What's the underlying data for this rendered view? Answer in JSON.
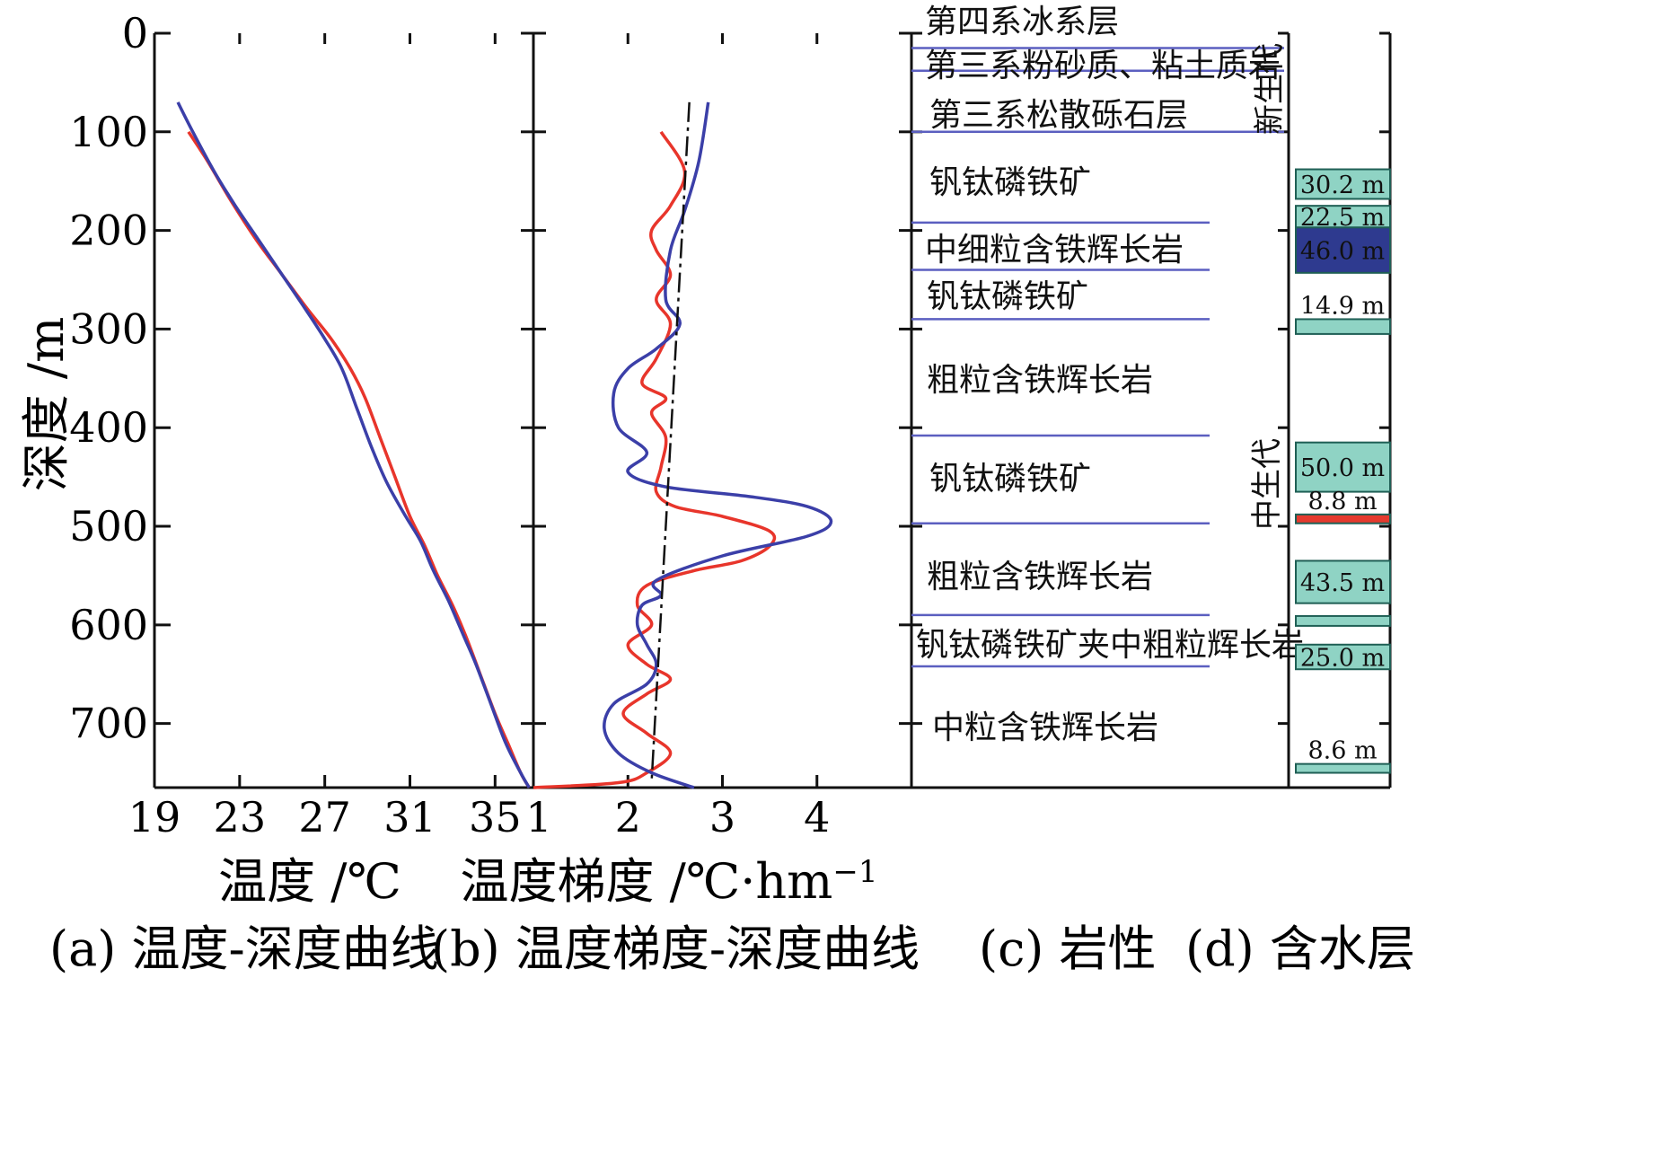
{
  "colors": {
    "red_curve": "#e8352b",
    "blue_curve": "#3b3fa8",
    "boundary": "#5b5fc0",
    "aquifer_fill": "#8fd3c4",
    "aquifer_dark": "#2e3a8f",
    "aquifer_red": "#e53a2e"
  },
  "y_axis": {
    "label": "深度 /m",
    "ticks": [
      "0",
      "100",
      "200",
      "300",
      "400",
      "500",
      "600",
      "700"
    ]
  },
  "panel_a": {
    "xlabel": "温度 /℃",
    "xticks": [
      "19",
      "23",
      "27",
      "31",
      "35"
    ],
    "caption": "(a) 温度-深度曲线"
  },
  "panel_b": {
    "xlabel": "温度梯度 /℃·hm",
    "xlabel_sup": "−1",
    "xticks": [
      "1",
      "2",
      "3",
      "4"
    ],
    "caption": "(b) 温度梯度-深度曲线"
  },
  "panel_c": {
    "caption": "(c) 岩性",
    "layers": [
      {
        "name": "第四系冰系层"
      },
      {
        "name": "第三系粉砂质、粘土质岩"
      },
      {
        "name": "第三系松散砾石层"
      },
      {
        "name": "钒钛磷铁矿"
      },
      {
        "name": "中细粒含铁辉长岩"
      },
      {
        "name": "钒钛磷铁矿"
      },
      {
        "name": "粗粒含铁辉长岩"
      },
      {
        "name": "钒钛磷铁矿"
      },
      {
        "name": "粗粒含铁辉长岩"
      },
      {
        "name": "钒钛磷铁矿夹中粗粒辉长岩"
      },
      {
        "name": "中粒含铁辉长岩"
      }
    ],
    "boundaries_m": [
      15,
      38,
      100,
      192,
      240,
      290,
      408,
      497,
      590,
      642
    ]
  },
  "panel_d": {
    "caption": "(d) 含水层",
    "eras": [
      "新生代",
      "中生代"
    ],
    "aquifers": [
      {
        "label": "30.2 m",
        "top": 138,
        "bottom": 168,
        "style": "light"
      },
      {
        "label": "22.5 m",
        "top": 175,
        "bottom": 197,
        "style": "light"
      },
      {
        "label": "46.0 m",
        "top": 197,
        "bottom": 243,
        "style": "dark"
      },
      {
        "label": "14.9 m",
        "top": 290,
        "bottom": 305,
        "style": "light"
      },
      {
        "label": "50.0 m",
        "top": 415,
        "bottom": 465,
        "style": "light"
      },
      {
        "label": "8.8 m",
        "top": 488,
        "bottom": 497,
        "style": "red"
      },
      {
        "label": "43.5 m",
        "top": 535,
        "bottom": 578,
        "style": "light"
      },
      {
        "label": "",
        "top": 591,
        "bottom": 601,
        "style": "light"
      },
      {
        "label": "25.0 m",
        "top": 620,
        "bottom": 645,
        "style": "light"
      },
      {
        "label": "8.6 m",
        "top": 741,
        "bottom": 750,
        "style": "light"
      }
    ]
  },
  "chart_data": [
    {
      "type": "line",
      "xlabel": "温度 /℃",
      "ylabel": "深度 /m",
      "xlim": [
        19,
        36.8
      ],
      "ylim": [
        0,
        765
      ],
      "y_inverted": true,
      "series": [
        {
          "color": "red",
          "points": [
            [
              20.6,
              100
            ],
            [
              21.5,
              130
            ],
            [
              22.6,
              170
            ],
            [
              23.8,
              210
            ],
            [
              25.0,
              245
            ],
            [
              26.2,
              280
            ],
            [
              27.3,
              310
            ],
            [
              28.2,
              340
            ],
            [
              28.9,
              370
            ],
            [
              29.6,
              410
            ],
            [
              30.3,
              450
            ],
            [
              31.0,
              490
            ],
            [
              31.7,
              520
            ],
            [
              32.3,
              550
            ],
            [
              33.0,
              580
            ],
            [
              33.6,
              610
            ],
            [
              34.3,
              650
            ],
            [
              35.0,
              690
            ],
            [
              35.6,
              720
            ],
            [
              36.2,
              750
            ],
            [
              36.6,
              765
            ]
          ]
        },
        {
          "color": "blue",
          "points": [
            [
              20.1,
              70
            ],
            [
              20.8,
              100
            ],
            [
              21.8,
              140
            ],
            [
              22.8,
              175
            ],
            [
              23.9,
              210
            ],
            [
              25.0,
              245
            ],
            [
              26.1,
              280
            ],
            [
              27.0,
              310
            ],
            [
              27.8,
              340
            ],
            [
              28.5,
              380
            ],
            [
              29.2,
              420
            ],
            [
              29.9,
              455
            ],
            [
              30.8,
              490
            ],
            [
              31.5,
              515
            ],
            [
              32.1,
              545
            ],
            [
              32.8,
              575
            ],
            [
              33.5,
              610
            ],
            [
              34.1,
              640
            ],
            [
              34.8,
              680
            ],
            [
              35.5,
              720
            ],
            [
              36.2,
              750
            ],
            [
              36.6,
              765
            ]
          ]
        }
      ]
    },
    {
      "type": "line",
      "xlabel": "温度梯度 /℃·hm−1",
      "ylabel": "深度 /m",
      "xlim": [
        1,
        5
      ],
      "ylim": [
        0,
        765
      ],
      "y_inverted": true,
      "series": [
        {
          "color": "red",
          "points": [
            [
              2.35,
              100
            ],
            [
              2.6,
              140
            ],
            [
              2.45,
              175
            ],
            [
              2.25,
              200
            ],
            [
              2.3,
              220
            ],
            [
              2.45,
              245
            ],
            [
              2.3,
              270
            ],
            [
              2.45,
              295
            ],
            [
              2.3,
              330
            ],
            [
              2.15,
              355
            ],
            [
              2.4,
              370
            ],
            [
              2.25,
              385
            ],
            [
              2.4,
              410
            ],
            [
              2.35,
              440
            ],
            [
              2.3,
              465
            ],
            [
              2.5,
              480
            ],
            [
              3.0,
              490
            ],
            [
              3.5,
              505
            ],
            [
              3.5,
              520
            ],
            [
              3.2,
              535
            ],
            [
              2.7,
              545
            ],
            [
              2.2,
              560
            ],
            [
              2.1,
              580
            ],
            [
              2.25,
              600
            ],
            [
              2.0,
              620
            ],
            [
              2.2,
              640
            ],
            [
              2.45,
              655
            ],
            [
              2.2,
              670
            ],
            [
              1.95,
              690
            ],
            [
              2.2,
              710
            ],
            [
              2.45,
              730
            ],
            [
              2.2,
              750
            ],
            [
              1.9,
              760
            ],
            [
              1.0,
              765
            ]
          ]
        },
        {
          "color": "blue",
          "points": [
            [
              2.85,
              70
            ],
            [
              2.75,
              130
            ],
            [
              2.6,
              180
            ],
            [
              2.45,
              220
            ],
            [
              2.4,
              270
            ],
            [
              2.55,
              295
            ],
            [
              2.3,
              320
            ],
            [
              2.0,
              340
            ],
            [
              1.85,
              365
            ],
            [
              1.9,
              400
            ],
            [
              2.2,
              425
            ],
            [
              2.0,
              445
            ],
            [
              2.4,
              460
            ],
            [
              3.3,
              470
            ],
            [
              3.9,
              480
            ],
            [
              4.15,
              495
            ],
            [
              3.9,
              510
            ],
            [
              3.0,
              530
            ],
            [
              2.3,
              555
            ],
            [
              2.35,
              570
            ],
            [
              2.15,
              580
            ],
            [
              2.1,
              600
            ],
            [
              2.2,
              620
            ],
            [
              2.3,
              640
            ],
            [
              2.2,
              660
            ],
            [
              1.85,
              680
            ],
            [
              1.75,
              705
            ],
            [
              1.9,
              730
            ],
            [
              2.25,
              750
            ],
            [
              2.7,
              765
            ]
          ]
        },
        {
          "color": "black",
          "style": "dashed",
          "points": [
            [
              2.65,
              70
            ],
            [
              2.25,
              760
            ]
          ]
        }
      ]
    }
  ]
}
